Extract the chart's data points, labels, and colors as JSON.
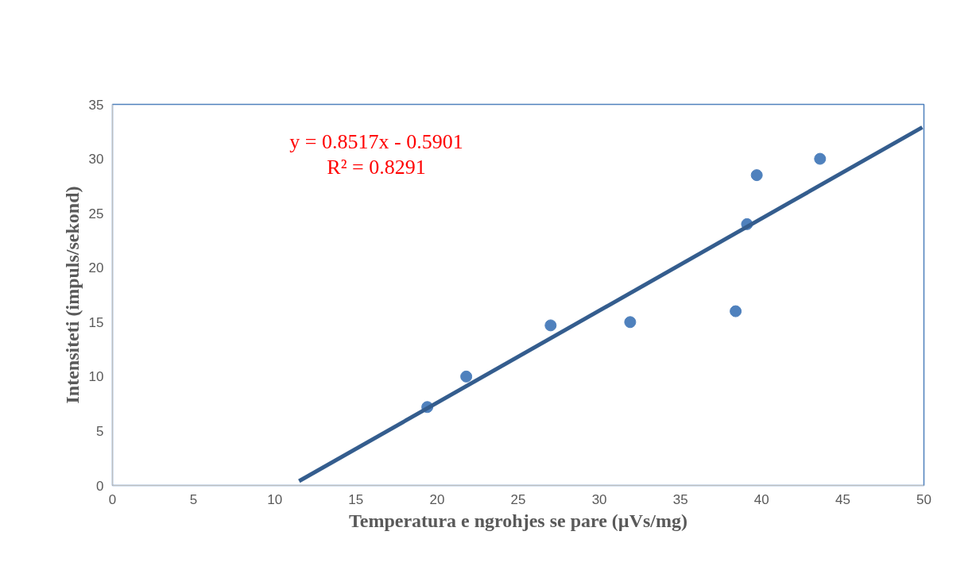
{
  "chart_data": {
    "type": "scatter",
    "xlabel": "Temperatura e ngrohjes se pare (µVs/mg)",
    "ylabel": "Intensiteti (impuls/sekond)",
    "xlim": [
      0,
      50
    ],
    "ylim": [
      0,
      35
    ],
    "xticks": [
      0,
      5,
      10,
      15,
      20,
      25,
      30,
      35,
      40,
      45,
      50
    ],
    "yticks": [
      0,
      5,
      10,
      15,
      20,
      25,
      30,
      35
    ],
    "grid": false,
    "marker": "circle",
    "series": [
      {
        "color": "#4f81bd",
        "x": [
          19.4,
          21.8,
          27.0,
          31.9,
          38.4,
          39.1,
          39.7,
          43.6
        ],
        "values": [
          7.2,
          10.0,
          14.7,
          15.0,
          16.0,
          24.0,
          28.5,
          30.0
        ]
      },
      {
        "type": "line",
        "color": "#345d8e",
        "line_style": "solid",
        "marker": "none",
        "x": [
          11.5,
          49.9
        ],
        "values": [
          0.4,
          32.9
        ]
      }
    ],
    "annotations": [
      "y = 0.8517x - 0.5901",
      "R² = 0.8291"
    ]
  }
}
